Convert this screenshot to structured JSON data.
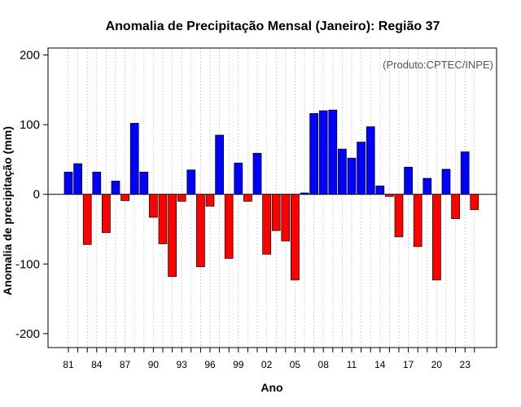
{
  "chart_data": {
    "type": "bar",
    "title": "Anomalia de Precipitação Mensal (Janeiro): Região 37",
    "xlabel": "Ano",
    "ylabel": "Anomalia de precipitação (mm)",
    "credit": "(Produto:CPTEC/INPE)",
    "ylim": [
      -220,
      210
    ],
    "yticks": [
      -200,
      -100,
      0,
      100,
      200
    ],
    "xtick_labels": [
      "81",
      "84",
      "87",
      "90",
      "93",
      "96",
      "99",
      "02",
      "05",
      "08",
      "11",
      "14",
      "17",
      "20",
      "23"
    ],
    "xtick_every": 3,
    "grid": true,
    "categories": [
      "1981",
      "1982",
      "1983",
      "1984",
      "1985",
      "1986",
      "1987",
      "1988",
      "1989",
      "1990",
      "1991",
      "1992",
      "1993",
      "1994",
      "1995",
      "1996",
      "1997",
      "1998",
      "1999",
      "2000",
      "2001",
      "2002",
      "2003",
      "2004",
      "2005",
      "2006",
      "2007",
      "2008",
      "2009",
      "2010",
      "2011",
      "2012",
      "2013",
      "2014",
      "2015",
      "2016",
      "2017",
      "2018",
      "2019",
      "2020",
      "2021",
      "2022",
      "2023",
      "2024"
    ],
    "values": [
      32,
      44,
      -72,
      32,
      -55,
      19,
      -9,
      102,
      32,
      -33,
      -71,
      -118,
      -10,
      35,
      -104,
      -17,
      85,
      -92,
      45,
      -10,
      59,
      -86,
      -52,
      -67,
      -123,
      2,
      116,
      120,
      121,
      65,
      52,
      75,
      97,
      12,
      -3,
      -61,
      39,
      -75,
      23,
      -123,
      36,
      -35,
      61,
      -22
    ],
    "colors": {
      "positive": "#0000ff",
      "negative": "#ff0000",
      "grid": "#cccccc",
      "axis": "#000000"
    }
  }
}
